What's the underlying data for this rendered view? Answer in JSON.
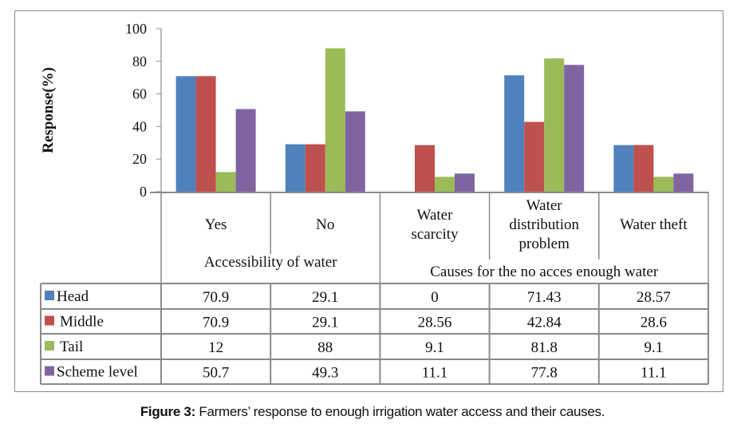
{
  "chart_data": {
    "type": "bar",
    "title": "",
    "xlabel": "",
    "ylabel": "Response(%)",
    "ylim": [
      0,
      100
    ],
    "yticks": [
      0,
      20,
      40,
      60,
      80,
      100
    ],
    "grid": false,
    "legend": "data-table-left",
    "categories": [
      "Yes",
      "No",
      "Water scarcity",
      "Water distribution problem",
      "Water theft"
    ],
    "category_lines": [
      [
        "Yes"
      ],
      [
        "No"
      ],
      [
        "Water",
        "scarcity"
      ],
      [
        "Water",
        "distribution",
        "problem"
      ],
      [
        "Water theft"
      ]
    ],
    "category_groups": [
      {
        "label": "Accessibility of water",
        "span": [
          0,
          1
        ]
      },
      {
        "label": "Causes for  the no acces enough  water",
        "span": [
          2,
          4
        ]
      }
    ],
    "series": [
      {
        "name": "Head",
        "color": "#4F81BD",
        "values": [
          70.9,
          29.1,
          0,
          71.43,
          28.57
        ],
        "labels": [
          "70.9",
          "29.1",
          "0",
          "71.43",
          "28.57"
        ]
      },
      {
        "name": "Middle",
        "color": "#C0504D",
        "values": [
          70.9,
          29.1,
          28.56,
          42.84,
          28.6
        ],
        "labels": [
          "70.9",
          "29.1",
          "28.56",
          "42.84",
          "28.6"
        ]
      },
      {
        "name": "Tail",
        "color": "#9BBB59",
        "values": [
          12,
          88,
          9.1,
          81.8,
          9.1
        ],
        "labels": [
          "12",
          "88",
          "9.1",
          "81.8",
          "9.1"
        ]
      },
      {
        "name": "Scheme level",
        "color": "#8064A2",
        "values": [
          50.7,
          49.3,
          11.1,
          77.8,
          11.1
        ],
        "labels": [
          "50.7",
          "49.3",
          "11.1",
          "77.8",
          "11.1"
        ]
      }
    ]
  },
  "caption": {
    "label": "Figure 3:",
    "text": " Farmers’ response to enough irrigation water access and their causes."
  }
}
